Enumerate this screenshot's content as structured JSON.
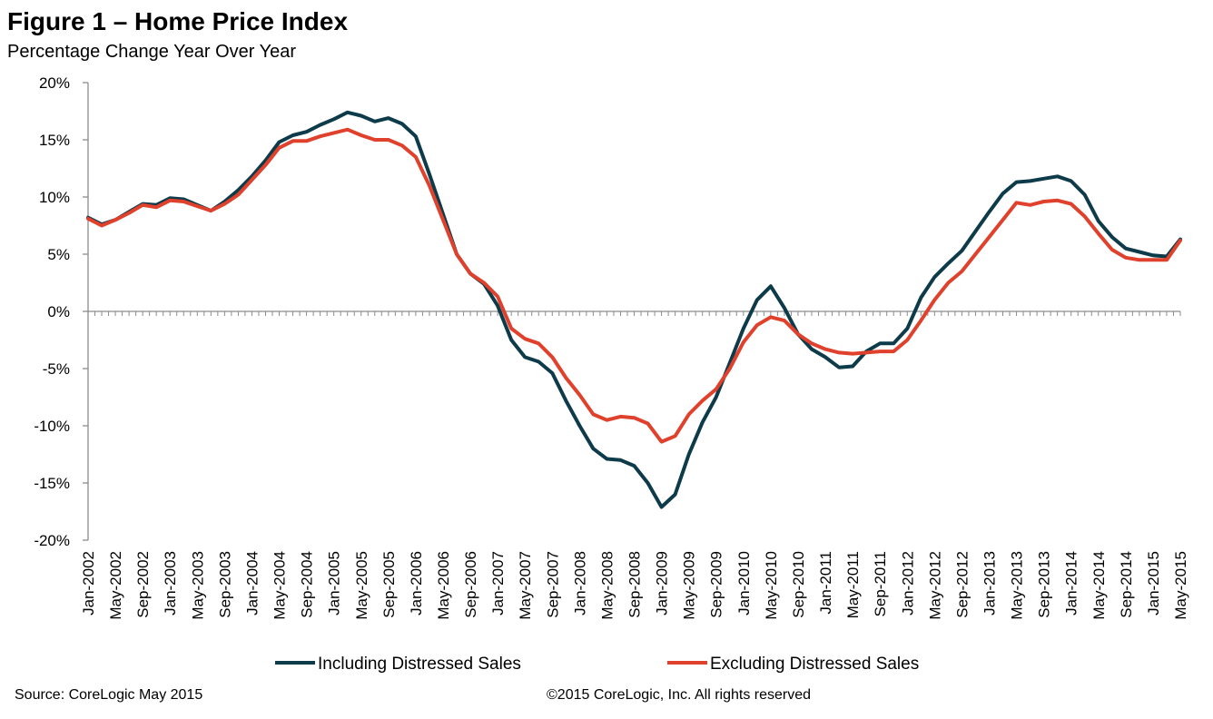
{
  "chart_data": {
    "type": "line",
    "title": "Figure 1 – Home Price Index",
    "subtitle": "Percentage Change Year Over Year",
    "xlabel": "",
    "ylabel": "",
    "ylim": [
      -20,
      20
    ],
    "y_ticks": [
      "20%",
      "15%",
      "10%",
      "5%",
      "0%",
      "-5%",
      "-10%",
      "-15%",
      "-20%"
    ],
    "y_tick_values": [
      20,
      15,
      10,
      5,
      0,
      -5,
      -10,
      -15,
      -20
    ],
    "x_tick_labels": [
      "Jan-2002",
      "May-2002",
      "Sep-2002",
      "Jan-2003",
      "May-2003",
      "Sep-2003",
      "Jan-2004",
      "May-2004",
      "Sep-2004",
      "Jan-2005",
      "May-2005",
      "Sep-2005",
      "Jan-2006",
      "May-2006",
      "Sep-2006",
      "Jan-2007",
      "May-2007",
      "Sep-2007",
      "Jan-2008",
      "May-2008",
      "Sep-2008",
      "Jan-2009",
      "May-2009",
      "Sep-2009",
      "Jan-2010",
      "May-2010",
      "Sep-2010",
      "Jan-2011",
      "May-2011",
      "Sep-2011",
      "Jan-2012",
      "May-2012",
      "Sep-2012",
      "Jan-2013",
      "May-2013",
      "Sep-2013",
      "Jan-2014",
      "May-2014",
      "Sep-2014",
      "Jan-2015",
      "May-2015"
    ],
    "x_tick_dates": [
      "2002-01",
      "2002-05",
      "2002-09",
      "2003-01",
      "2003-05",
      "2003-09",
      "2004-01",
      "2004-05",
      "2004-09",
      "2005-01",
      "2005-05",
      "2005-09",
      "2006-01",
      "2006-05",
      "2006-09",
      "2007-01",
      "2007-05",
      "2007-09",
      "2008-01",
      "2008-05",
      "2008-09",
      "2009-01",
      "2009-05",
      "2009-09",
      "2010-01",
      "2010-05",
      "2010-09",
      "2011-01",
      "2011-05",
      "2011-09",
      "2012-01",
      "2012-05",
      "2012-09",
      "2013-01",
      "2013-05",
      "2013-09",
      "2014-01",
      "2014-05",
      "2014-09",
      "2015-01",
      "2015-05"
    ],
    "grid": false,
    "legend_position": "bottom",
    "series": [
      {
        "name": "Including Distressed Sales",
        "color": "#0d3b4a",
        "points": [
          [
            "2002-01",
            8.2
          ],
          [
            "2002-03",
            7.6
          ],
          [
            "2002-05",
            8.0
          ],
          [
            "2002-07",
            8.7
          ],
          [
            "2002-09",
            9.4
          ],
          [
            "2002-11",
            9.3
          ],
          [
            "2003-01",
            9.9
          ],
          [
            "2003-03",
            9.8
          ],
          [
            "2003-05",
            9.3
          ],
          [
            "2003-07",
            8.8
          ],
          [
            "2003-09",
            9.6
          ],
          [
            "2003-11",
            10.6
          ],
          [
            "2004-01",
            11.8
          ],
          [
            "2004-03",
            13.2
          ],
          [
            "2004-05",
            14.8
          ],
          [
            "2004-07",
            15.4
          ],
          [
            "2004-09",
            15.7
          ],
          [
            "2004-11",
            16.3
          ],
          [
            "2005-01",
            16.8
          ],
          [
            "2005-03",
            17.4
          ],
          [
            "2005-05",
            17.1
          ],
          [
            "2005-07",
            16.6
          ],
          [
            "2005-09",
            16.9
          ],
          [
            "2005-11",
            16.4
          ],
          [
            "2006-01",
            15.3
          ],
          [
            "2006-03",
            12.0
          ],
          [
            "2006-05",
            8.5
          ],
          [
            "2006-07",
            5.0
          ],
          [
            "2006-09",
            3.3
          ],
          [
            "2006-11",
            2.4
          ],
          [
            "2007-01",
            0.5
          ],
          [
            "2007-03",
            -2.5
          ],
          [
            "2007-05",
            -4.0
          ],
          [
            "2007-07",
            -4.4
          ],
          [
            "2007-09",
            -5.4
          ],
          [
            "2007-11",
            -7.8
          ],
          [
            "2008-01",
            -10.0
          ],
          [
            "2008-03",
            -12.0
          ],
          [
            "2008-05",
            -12.9
          ],
          [
            "2008-07",
            -13.0
          ],
          [
            "2008-09",
            -13.5
          ],
          [
            "2008-11",
            -15.0
          ],
          [
            "2009-01",
            -17.1
          ],
          [
            "2009-03",
            -16.0
          ],
          [
            "2009-05",
            -12.5
          ],
          [
            "2009-07",
            -9.7
          ],
          [
            "2009-09",
            -7.5
          ],
          [
            "2009-11",
            -4.5
          ],
          [
            "2010-01",
            -1.5
          ],
          [
            "2010-03",
            1.0
          ],
          [
            "2010-05",
            2.2
          ],
          [
            "2010-07",
            0.3
          ],
          [
            "2010-09",
            -2.0
          ],
          [
            "2010-11",
            -3.3
          ],
          [
            "2011-01",
            -4.0
          ],
          [
            "2011-03",
            -4.9
          ],
          [
            "2011-05",
            -4.8
          ],
          [
            "2011-07",
            -3.5
          ],
          [
            "2011-09",
            -2.8
          ],
          [
            "2011-11",
            -2.8
          ],
          [
            "2012-01",
            -1.5
          ],
          [
            "2012-03",
            1.2
          ],
          [
            "2012-05",
            3.0
          ],
          [
            "2012-07",
            4.2
          ],
          [
            "2012-09",
            5.3
          ],
          [
            "2012-11",
            7.0
          ],
          [
            "2013-01",
            8.7
          ],
          [
            "2013-03",
            10.3
          ],
          [
            "2013-05",
            11.3
          ],
          [
            "2013-07",
            11.4
          ],
          [
            "2013-09",
            11.6
          ],
          [
            "2013-11",
            11.8
          ],
          [
            "2014-01",
            11.4
          ],
          [
            "2014-03",
            10.2
          ],
          [
            "2014-05",
            7.9
          ],
          [
            "2014-07",
            6.5
          ],
          [
            "2014-09",
            5.5
          ],
          [
            "2014-11",
            5.2
          ],
          [
            "2015-01",
            4.9
          ],
          [
            "2015-03",
            4.8
          ],
          [
            "2015-05",
            6.3
          ]
        ]
      },
      {
        "name": "Excluding Distressed Sales",
        "color": "#e0412c",
        "points": [
          [
            "2002-01",
            8.1
          ],
          [
            "2002-03",
            7.5
          ],
          [
            "2002-05",
            8.0
          ],
          [
            "2002-07",
            8.6
          ],
          [
            "2002-09",
            9.3
          ],
          [
            "2002-11",
            9.1
          ],
          [
            "2003-01",
            9.7
          ],
          [
            "2003-03",
            9.6
          ],
          [
            "2003-05",
            9.2
          ],
          [
            "2003-07",
            8.8
          ],
          [
            "2003-09",
            9.4
          ],
          [
            "2003-11",
            10.2
          ],
          [
            "2004-01",
            11.5
          ],
          [
            "2004-03",
            12.8
          ],
          [
            "2004-05",
            14.3
          ],
          [
            "2004-07",
            14.9
          ],
          [
            "2004-09",
            14.9
          ],
          [
            "2004-11",
            15.3
          ],
          [
            "2005-01",
            15.6
          ],
          [
            "2005-03",
            15.9
          ],
          [
            "2005-05",
            15.4
          ],
          [
            "2005-07",
            15.0
          ],
          [
            "2005-09",
            15.0
          ],
          [
            "2005-11",
            14.5
          ],
          [
            "2006-01",
            13.5
          ],
          [
            "2006-03",
            11.0
          ],
          [
            "2006-05",
            8.0
          ],
          [
            "2006-07",
            5.0
          ],
          [
            "2006-09",
            3.3
          ],
          [
            "2006-11",
            2.5
          ],
          [
            "2007-01",
            1.3
          ],
          [
            "2007-03",
            -1.5
          ],
          [
            "2007-05",
            -2.4
          ],
          [
            "2007-07",
            -2.8
          ],
          [
            "2007-09",
            -4.0
          ],
          [
            "2007-11",
            -5.8
          ],
          [
            "2008-01",
            -7.3
          ],
          [
            "2008-03",
            -9.0
          ],
          [
            "2008-05",
            -9.5
          ],
          [
            "2008-07",
            -9.2
          ],
          [
            "2008-09",
            -9.3
          ],
          [
            "2008-11",
            -9.8
          ],
          [
            "2009-01",
            -11.4
          ],
          [
            "2009-03",
            -10.9
          ],
          [
            "2009-05",
            -9.0
          ],
          [
            "2009-07",
            -7.8
          ],
          [
            "2009-09",
            -6.8
          ],
          [
            "2009-11",
            -5.0
          ],
          [
            "2010-01",
            -2.7
          ],
          [
            "2010-03",
            -1.2
          ],
          [
            "2010-05",
            -0.5
          ],
          [
            "2010-07",
            -0.8
          ],
          [
            "2010-09",
            -2.0
          ],
          [
            "2010-11",
            -2.8
          ],
          [
            "2011-01",
            -3.3
          ],
          [
            "2011-03",
            -3.6
          ],
          [
            "2011-05",
            -3.7
          ],
          [
            "2011-07",
            -3.6
          ],
          [
            "2011-09",
            -3.5
          ],
          [
            "2011-11",
            -3.5
          ],
          [
            "2012-01",
            -2.5
          ],
          [
            "2012-03",
            -0.8
          ],
          [
            "2012-05",
            1.0
          ],
          [
            "2012-07",
            2.5
          ],
          [
            "2012-09",
            3.5
          ],
          [
            "2012-11",
            5.0
          ],
          [
            "2013-01",
            6.5
          ],
          [
            "2013-03",
            8.0
          ],
          [
            "2013-05",
            9.5
          ],
          [
            "2013-07",
            9.3
          ],
          [
            "2013-09",
            9.6
          ],
          [
            "2013-11",
            9.7
          ],
          [
            "2014-01",
            9.4
          ],
          [
            "2014-03",
            8.3
          ],
          [
            "2014-05",
            6.8
          ],
          [
            "2014-07",
            5.4
          ],
          [
            "2014-09",
            4.7
          ],
          [
            "2014-11",
            4.5
          ],
          [
            "2015-01",
            4.5
          ],
          [
            "2015-03",
            4.5
          ],
          [
            "2015-05",
            6.2
          ]
        ]
      }
    ]
  },
  "footer": {
    "source": "Source: CoreLogic  May 2015",
    "copyright": "©2015 CoreLogic, Inc. All rights reserved"
  }
}
